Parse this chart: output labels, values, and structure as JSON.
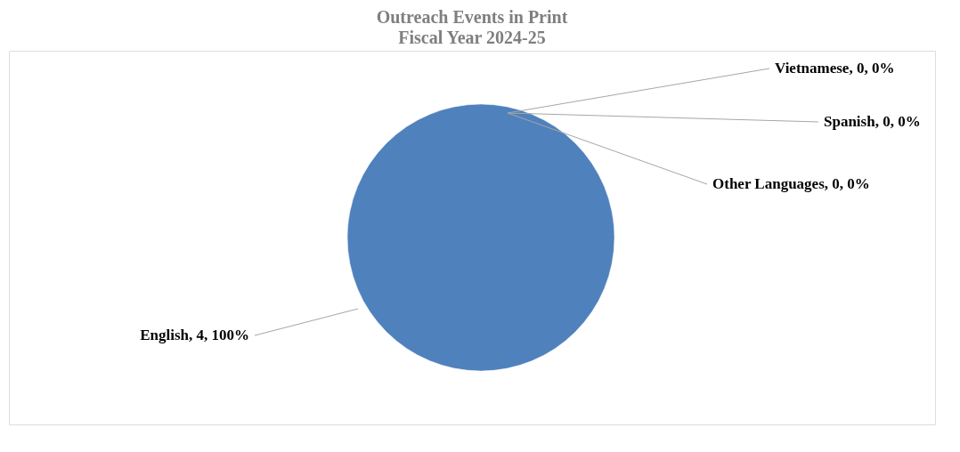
{
  "chart_data": {
    "type": "pie",
    "title": "Outreach Events in Print",
    "subtitle": "Fiscal Year 2024-25",
    "categories": [
      "Vietnamese",
      "Spanish",
      "Other Languages",
      "English"
    ],
    "values": [
      0,
      0,
      0,
      4
    ],
    "colors": [
      "#8064a2",
      "#9bbb59",
      "#c0504d",
      "#4f81bd"
    ],
    "value_labels": [
      ", 0, 0%",
      ", 0, 0%",
      ", 0, 0%",
      ", 4, 100%"
    ],
    "legend": false
  }
}
